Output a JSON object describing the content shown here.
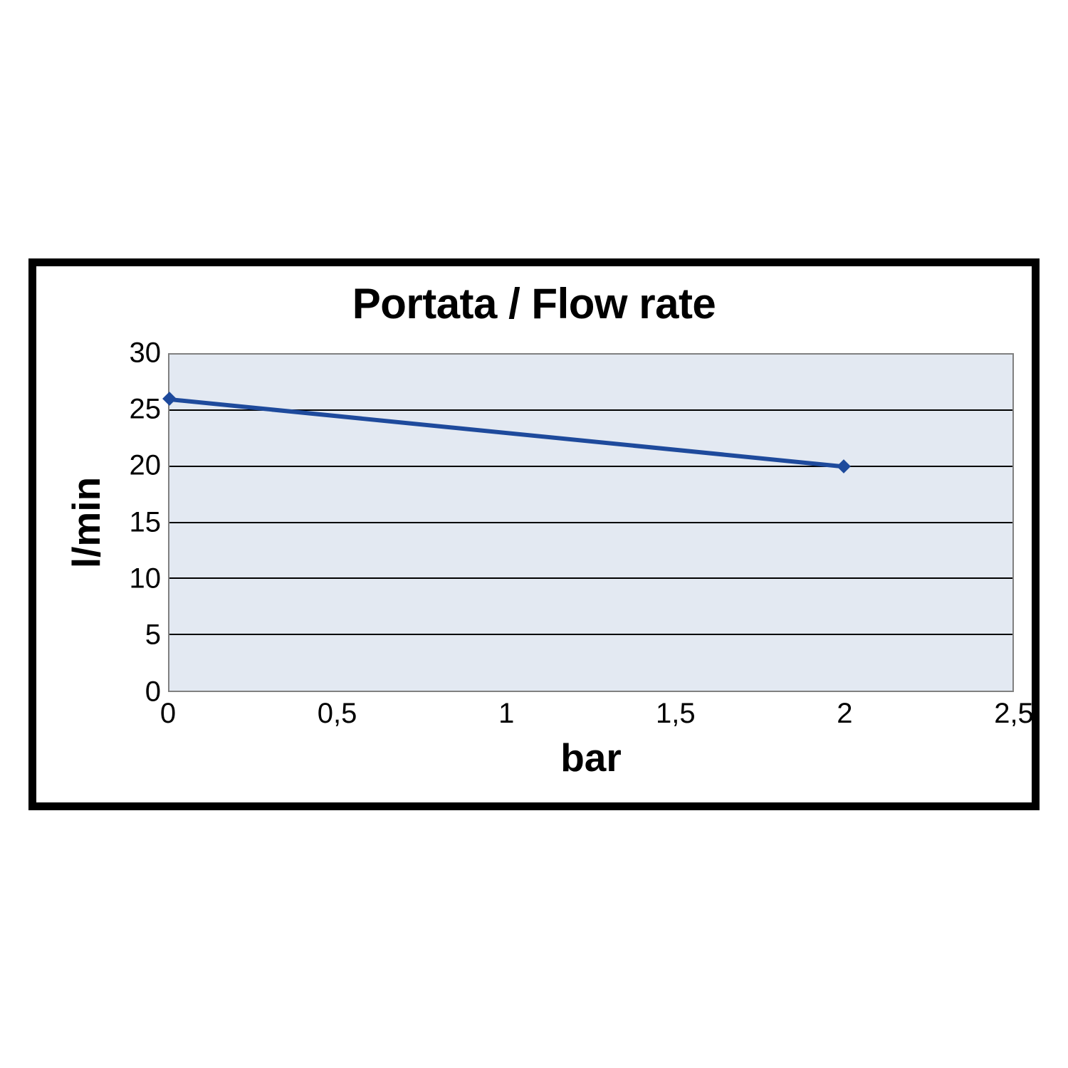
{
  "chart": {
    "type": "line",
    "title": "Portata / Flow rate",
    "title_fontsize": 60,
    "xlabel": "bar",
    "ylabel": "l/min",
    "label_fontsize": 55,
    "tick_fontsize": 40,
    "xlim": [
      0,
      2.5
    ],
    "ylim": [
      0,
      30
    ],
    "xticks": [
      0,
      0.5,
      1,
      1.5,
      2,
      2.5
    ],
    "xtick_labels": [
      "0",
      "0,5",
      "1",
      "1,5",
      "2",
      "2,5"
    ],
    "yticks": [
      0,
      5,
      10,
      15,
      20,
      25,
      30
    ],
    "ytick_labels": [
      "0",
      "5",
      "10",
      "15",
      "20",
      "25",
      "30"
    ],
    "data_points": [
      {
        "x": 0,
        "y": 26
      },
      {
        "x": 2,
        "y": 20
      }
    ],
    "line_color": "#1e4a9c",
    "line_width": 6,
    "marker_style": "diamond",
    "marker_size": 14,
    "marker_color": "#1e4a9c",
    "plot_background": "#e3e9f2",
    "plot_border_color": "#808080",
    "grid_color": "#000000",
    "outer_border_color": "#000000",
    "outer_border_width": 11,
    "background_color": "#ffffff",
    "aspect_ratio_note": "wide short plot, full chart box approx 1420x775 inside 1500x1500 canvas"
  }
}
